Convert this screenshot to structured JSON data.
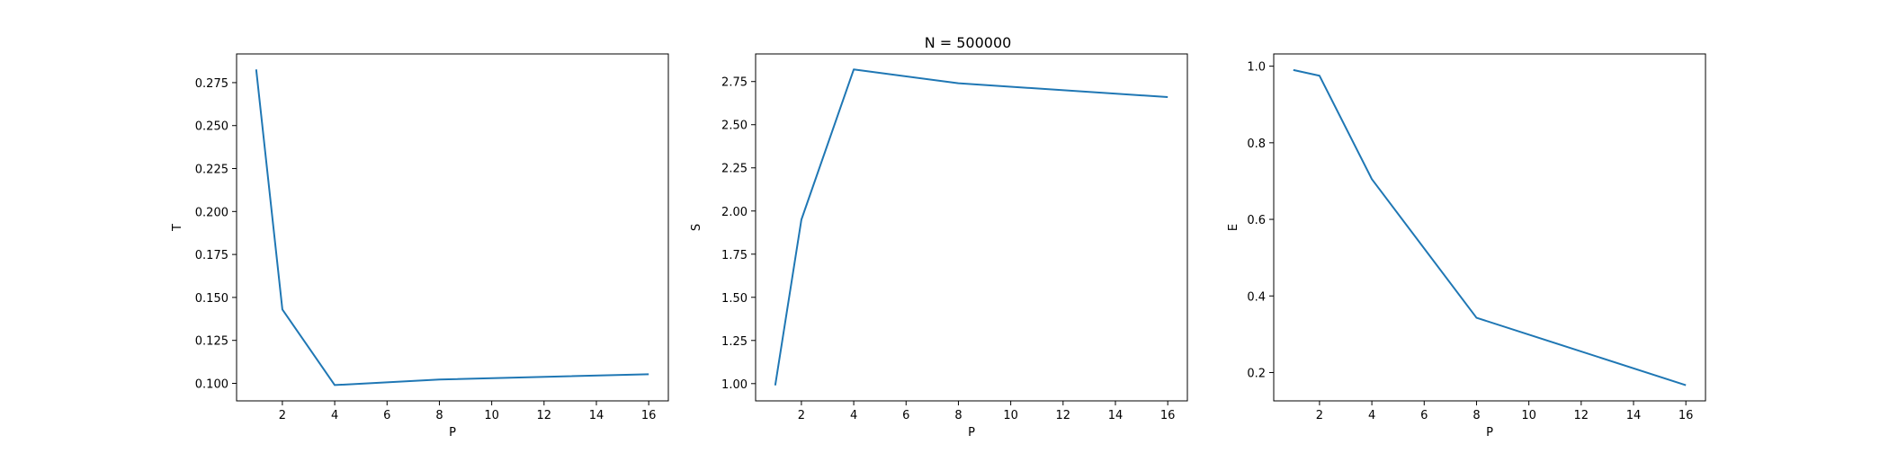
{
  "figure": {
    "suptitle": "N = 500000"
  },
  "chart_data": [
    {
      "type": "line",
      "title": "",
      "xlabel": "P",
      "ylabel": "T",
      "xlim": [
        0.25,
        16.75
      ],
      "ylim": [
        0.0898,
        0.2917
      ],
      "xticks": [
        2,
        4,
        6,
        8,
        10,
        12,
        14,
        16
      ],
      "yticks": [
        0.1,
        0.125,
        0.15,
        0.175,
        0.2,
        0.225,
        0.25,
        0.275
      ],
      "ytick_labels": [
        "0.100",
        "0.125",
        "0.150",
        "0.175",
        "0.200",
        "0.225",
        "0.250",
        "0.275"
      ],
      "grid": false,
      "line_color": "#1f77b4",
      "series": [
        {
          "x": [
            1,
            2,
            4,
            8,
            16
          ],
          "values": [
            0.2827,
            0.143,
            0.099,
            0.1022,
            0.1053
          ]
        }
      ]
    },
    {
      "type": "line",
      "title": "",
      "xlabel": "P",
      "ylabel": "S",
      "xlim": [
        0.25,
        16.75
      ],
      "ylim": [
        0.9,
        2.91
      ],
      "xticks": [
        2,
        4,
        6,
        8,
        10,
        12,
        14,
        16
      ],
      "yticks": [
        1.0,
        1.25,
        1.5,
        1.75,
        2.0,
        2.25,
        2.5,
        2.75
      ],
      "ytick_labels": [
        "1.00",
        "1.25",
        "1.50",
        "1.75",
        "2.00",
        "2.25",
        "2.50",
        "2.75"
      ],
      "grid": false,
      "line_color": "#1f77b4",
      "series": [
        {
          "x": [
            1,
            2,
            4,
            8,
            16
          ],
          "values": [
            0.99,
            1.95,
            2.82,
            2.74,
            2.66
          ]
        }
      ]
    },
    {
      "type": "line",
      "title": "",
      "xlabel": "P",
      "ylabel": "E",
      "xlim": [
        0.25,
        16.75
      ],
      "ylim": [
        0.126,
        1.032
      ],
      "xticks": [
        2,
        4,
        6,
        8,
        10,
        12,
        14,
        16
      ],
      "yticks": [
        0.2,
        0.4,
        0.6,
        0.8,
        1.0
      ],
      "ytick_labels": [
        "0.2",
        "0.4",
        "0.6",
        "0.8",
        "1.0"
      ],
      "grid": false,
      "line_color": "#1f77b4",
      "series": [
        {
          "x": [
            1,
            2,
            4,
            8,
            16
          ],
          "values": [
            0.99,
            0.975,
            0.705,
            0.343,
            0.167
          ]
        }
      ]
    }
  ]
}
